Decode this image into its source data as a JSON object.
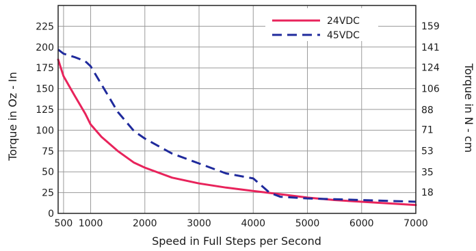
{
  "chart_data": {
    "type": "line",
    "xlabel": "Speed in Full Steps per Second",
    "ylabel_left": "Torque in Oz - In",
    "ylabel_right": "Torque in N - cm",
    "x_ticks": [
      500,
      1000,
      2000,
      3000,
      4000,
      5000,
      6000,
      7000
    ],
    "x_tick_labels": [
      "500",
      "1000",
      "2000",
      "3000",
      "4000",
      "5000",
      "6000",
      "7000"
    ],
    "xlim": [
      400,
      7000
    ],
    "y_left_ticks": [
      0,
      25,
      50,
      75,
      100,
      125,
      150,
      175,
      200,
      225
    ],
    "y_left_tick_labels": [
      "0",
      "25",
      "50",
      "75",
      "100",
      "125",
      "150",
      "175",
      "200",
      "225"
    ],
    "ylim": [
      0,
      250
    ],
    "y_right_ticks": [
      18,
      35,
      53,
      71,
      88,
      106,
      124,
      141,
      159
    ],
    "y_right_tick_labels": [
      "18",
      "35",
      "53",
      "71",
      "88",
      "106",
      "124",
      "141",
      "159"
    ],
    "y_right_scale": 0.706,
    "grid": true,
    "legend_position": "top-right",
    "series": [
      {
        "name": "24VDC",
        "color": "#e8235b",
        "style": "solid",
        "x": [
          400,
          500,
          700,
          900,
          1000,
          1200,
          1500,
          1800,
          2000,
          2500,
          3000,
          3500,
          4000,
          4500,
          5000,
          5500,
          6000,
          6500,
          7000
        ],
        "y": [
          185,
          165,
          142,
          120,
          107,
          92,
          75,
          61,
          55,
          43,
          36,
          31,
          27,
          23,
          19,
          16,
          14,
          12,
          10
        ]
      },
      {
        "name": "45VDC",
        "color": "#1f2a9c",
        "style": "dashed",
        "x": [
          400,
          500,
          700,
          900,
          1000,
          1200,
          1500,
          1800,
          2000,
          2500,
          3000,
          3500,
          4000,
          4300,
          4500,
          5000,
          5500,
          6000,
          6500,
          7000
        ],
        "y": [
          197,
          192,
          188,
          183,
          177,
          155,
          122,
          99,
          90,
          72,
          60,
          48,
          42,
          25,
          20,
          18,
          17,
          16,
          15,
          14
        ]
      }
    ]
  }
}
